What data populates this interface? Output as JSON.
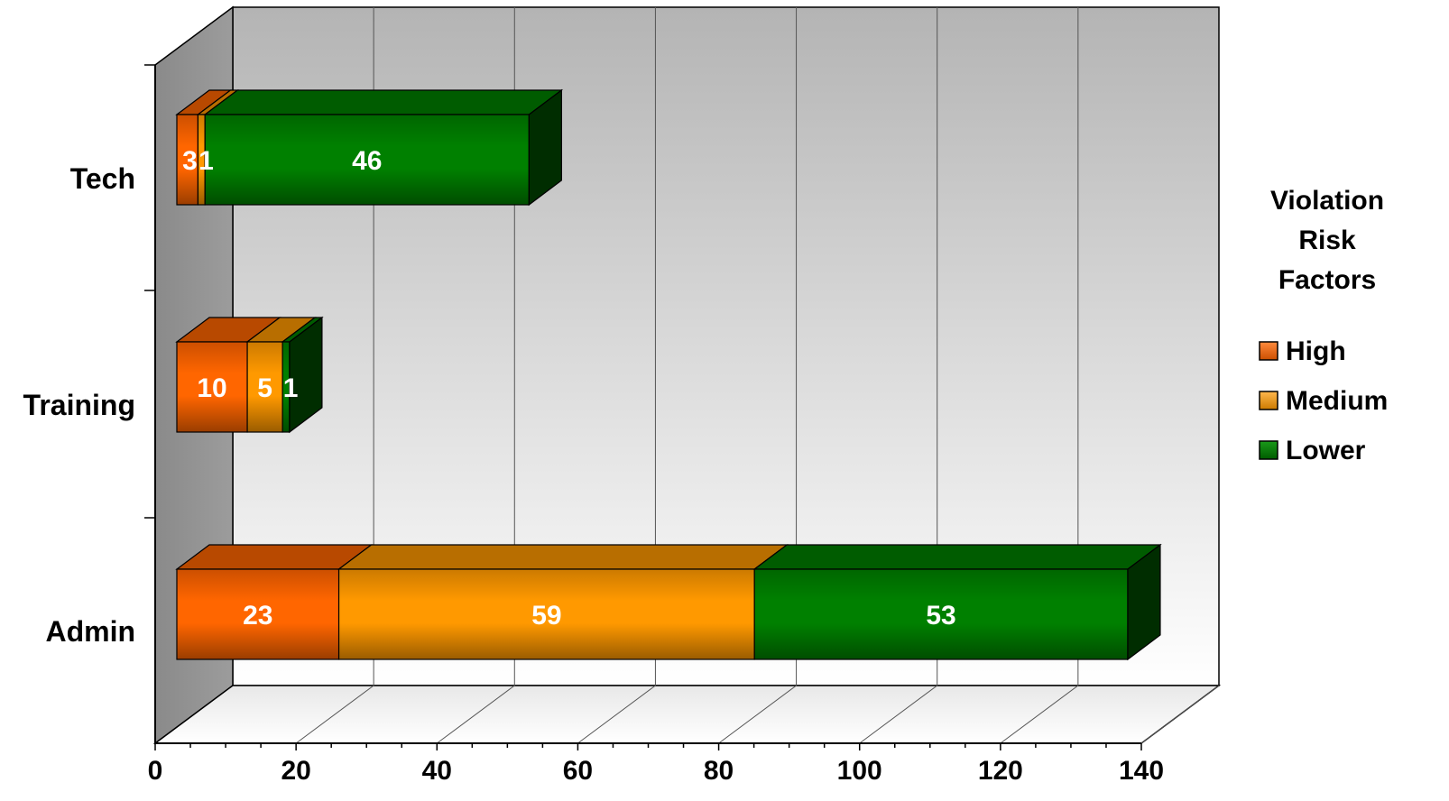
{
  "chart_data": {
    "type": "bar",
    "orientation": "horizontal",
    "stacked": true,
    "three_d": true,
    "categories": [
      "Tech",
      "Training",
      "Admin"
    ],
    "series": [
      {
        "name": "High",
        "values": [
          3,
          10,
          23
        ]
      },
      {
        "name": "Medium",
        "values": [
          1,
          5,
          59
        ]
      },
      {
        "name": "Lower",
        "values": [
          46,
          1,
          53
        ]
      }
    ],
    "x_ticks": [
      "0",
      "20",
      "40",
      "60",
      "80",
      "100",
      "120",
      "140"
    ],
    "xlim": [
      0,
      140
    ],
    "grid": true,
    "legend": {
      "title": "Violation Risk Factors",
      "title_lines": [
        "Violation",
        "Risk",
        "Factors"
      ],
      "position": "right"
    },
    "colors": {
      "High": "#ff6600",
      "Medium": "#ff9900",
      "Lower": "#008000"
    }
  }
}
